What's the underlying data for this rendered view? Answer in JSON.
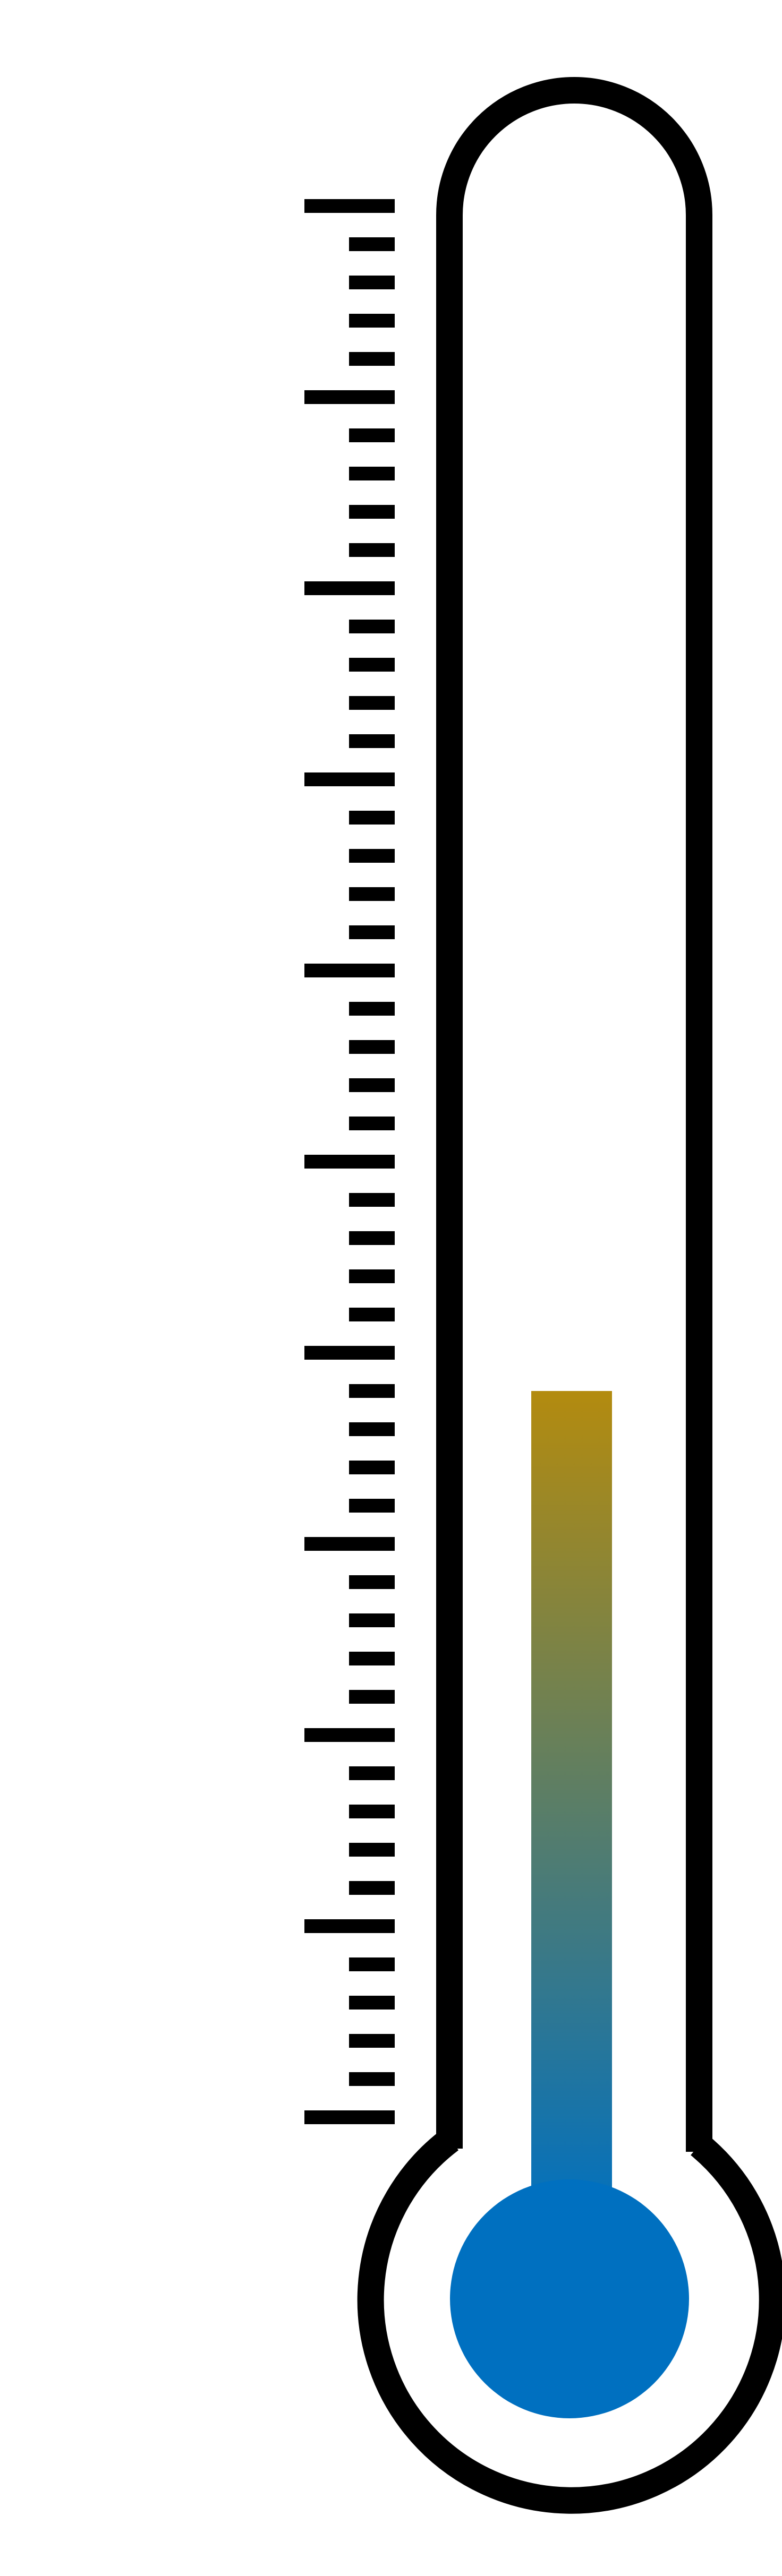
{
  "thermometer": {
    "level_fraction": 0.38,
    "major_ticks": 10,
    "minor_per_major": 4,
    "colors": {
      "outline": "#000000",
      "background": "#ffffff",
      "fill_top": "#B38B0F",
      "fill_bottom": "#0070C0",
      "bulb": "#0070C0"
    },
    "icon": "thermometer-icon"
  }
}
